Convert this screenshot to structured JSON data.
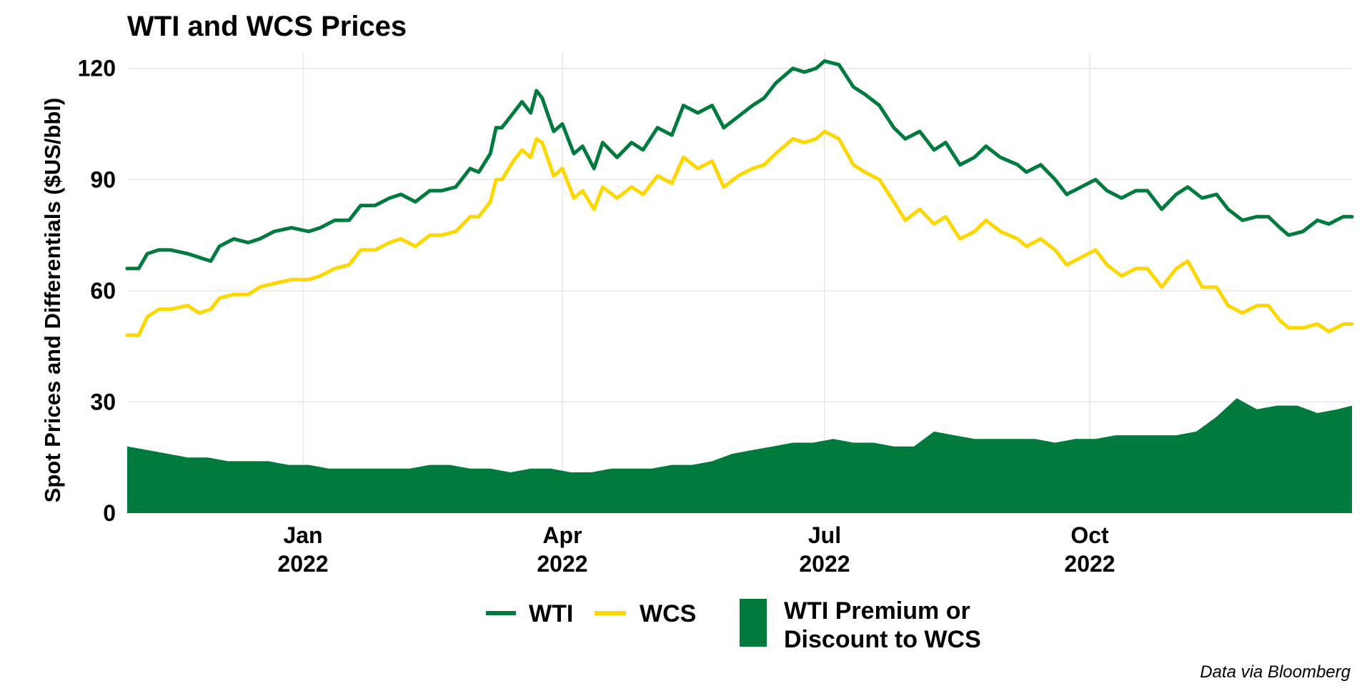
{
  "chart_data": {
    "type": "line",
    "title": "WTI and WCS Prices",
    "ylabel": "Spot Prices and Differentials ($US/bbl)",
    "xlabel": "",
    "x_range": [
      "2021-11-01",
      "2022-12-31"
    ],
    "ylim": [
      0,
      124
    ],
    "yticks": [
      0,
      30,
      60,
      90,
      120
    ],
    "ytick_labels": [
      "0",
      "30",
      "60",
      "90",
      "120"
    ],
    "xticks": [
      {
        "date": "2022-01-01",
        "label_month": "Jan",
        "label_year": "2022"
      },
      {
        "date": "2022-04-01",
        "label_month": "Apr",
        "label_year": "2022"
      },
      {
        "date": "2022-07-01",
        "label_month": "Jul",
        "label_year": "2022"
      },
      {
        "date": "2022-10-01",
        "label_month": "Oct",
        "label_year": "2022"
      }
    ],
    "grid": true,
    "legend_position": "bottom",
    "caption": "Data via Bloomberg",
    "series": [
      {
        "name": "WTI",
        "kind": "line",
        "color": "#007A3D",
        "points": [
          [
            "2021-11-01",
            66
          ],
          [
            "2021-11-05",
            66
          ],
          [
            "2021-11-08",
            70
          ],
          [
            "2021-11-12",
            71
          ],
          [
            "2021-11-16",
            71
          ],
          [
            "2021-11-22",
            70
          ],
          [
            "2021-11-26",
            69
          ],
          [
            "2021-11-30",
            68
          ],
          [
            "2021-12-03",
            72
          ],
          [
            "2021-12-08",
            74
          ],
          [
            "2021-12-13",
            73
          ],
          [
            "2021-12-17",
            74
          ],
          [
            "2021-12-22",
            76
          ],
          [
            "2021-12-28",
            77
          ],
          [
            "2022-01-03",
            76
          ],
          [
            "2022-01-07",
            77
          ],
          [
            "2022-01-12",
            79
          ],
          [
            "2022-01-17",
            79
          ],
          [
            "2022-01-21",
            83
          ],
          [
            "2022-01-26",
            83
          ],
          [
            "2022-01-31",
            85
          ],
          [
            "2022-02-04",
            86
          ],
          [
            "2022-02-09",
            84
          ],
          [
            "2022-02-14",
            87
          ],
          [
            "2022-02-18",
            87
          ],
          [
            "2022-02-23",
            88
          ],
          [
            "2022-02-28",
            93
          ],
          [
            "2022-03-03",
            92
          ],
          [
            "2022-03-07",
            97
          ],
          [
            "2022-03-09",
            104
          ],
          [
            "2022-03-11",
            104
          ],
          [
            "2022-03-15",
            108
          ],
          [
            "2022-03-18",
            111
          ],
          [
            "2022-03-21",
            108
          ],
          [
            "2022-03-23",
            114
          ],
          [
            "2022-03-25",
            112
          ],
          [
            "2022-03-29",
            103
          ],
          [
            "2022-04-01",
            105
          ],
          [
            "2022-04-05",
            97
          ],
          [
            "2022-04-08",
            99
          ],
          [
            "2022-04-12",
            93
          ],
          [
            "2022-04-15",
            100
          ],
          [
            "2022-04-20",
            96
          ],
          [
            "2022-04-25",
            100
          ],
          [
            "2022-04-29",
            98
          ],
          [
            "2022-05-04",
            104
          ],
          [
            "2022-05-09",
            102
          ],
          [
            "2022-05-13",
            110
          ],
          [
            "2022-05-18",
            108
          ],
          [
            "2022-05-23",
            110
          ],
          [
            "2022-05-27",
            104
          ],
          [
            "2022-06-01",
            107
          ],
          [
            "2022-06-06",
            110
          ],
          [
            "2022-06-10",
            112
          ],
          [
            "2022-06-14",
            116
          ],
          [
            "2022-06-20",
            120
          ],
          [
            "2022-06-24",
            119
          ],
          [
            "2022-06-28",
            120
          ],
          [
            "2022-07-01",
            122
          ],
          [
            "2022-07-06",
            121
          ],
          [
            "2022-07-11",
            115
          ],
          [
            "2022-07-15",
            113
          ],
          [
            "2022-07-20",
            110
          ],
          [
            "2022-07-25",
            104
          ],
          [
            "2022-07-29",
            101
          ],
          [
            "2022-08-03",
            103
          ],
          [
            "2022-08-08",
            98
          ],
          [
            "2022-08-12",
            100
          ],
          [
            "2022-08-17",
            94
          ],
          [
            "2022-08-22",
            96
          ],
          [
            "2022-08-26",
            99
          ],
          [
            "2022-08-31",
            96
          ],
          [
            "2022-09-06",
            94
          ],
          [
            "2022-09-09",
            92
          ],
          [
            "2022-09-14",
            94
          ],
          [
            "2022-09-19",
            90
          ],
          [
            "2022-09-23",
            86
          ],
          [
            "2022-09-28",
            88
          ],
          [
            "2022-10-03",
            90
          ],
          [
            "2022-10-07",
            87
          ],
          [
            "2022-10-12",
            85
          ],
          [
            "2022-10-17",
            87
          ],
          [
            "2022-10-21",
            87
          ],
          [
            "2022-10-26",
            82
          ],
          [
            "2022-10-31",
            86
          ],
          [
            "2022-11-04",
            88
          ],
          [
            "2022-11-09",
            85
          ],
          [
            "2022-11-14",
            86
          ],
          [
            "2022-11-18",
            82
          ],
          [
            "2022-11-23",
            79
          ],
          [
            "2022-11-28",
            80
          ],
          [
            "2022-12-02",
            80
          ],
          [
            "2022-12-06",
            77
          ],
          [
            "2022-12-09",
            75
          ],
          [
            "2022-12-14",
            76
          ],
          [
            "2022-12-19",
            79
          ],
          [
            "2022-12-23",
            78
          ],
          [
            "2022-12-28",
            80
          ],
          [
            "2022-12-31",
            80
          ]
        ]
      },
      {
        "name": "WCS",
        "kind": "line",
        "color": "#FFD700",
        "points": [
          [
            "2021-11-01",
            48
          ],
          [
            "2021-11-05",
            48
          ],
          [
            "2021-11-08",
            53
          ],
          [
            "2021-11-12",
            55
          ],
          [
            "2021-11-16",
            55
          ],
          [
            "2021-11-22",
            56
          ],
          [
            "2021-11-26",
            54
          ],
          [
            "2021-11-30",
            55
          ],
          [
            "2021-12-03",
            58
          ],
          [
            "2021-12-08",
            59
          ],
          [
            "2021-12-13",
            59
          ],
          [
            "2021-12-17",
            61
          ],
          [
            "2021-12-22",
            62
          ],
          [
            "2021-12-28",
            63
          ],
          [
            "2022-01-03",
            63
          ],
          [
            "2022-01-07",
            64
          ],
          [
            "2022-01-12",
            66
          ],
          [
            "2022-01-17",
            67
          ],
          [
            "2022-01-21",
            71
          ],
          [
            "2022-01-26",
            71
          ],
          [
            "2022-01-31",
            73
          ],
          [
            "2022-02-04",
            74
          ],
          [
            "2022-02-09",
            72
          ],
          [
            "2022-02-14",
            75
          ],
          [
            "2022-02-18",
            75
          ],
          [
            "2022-02-23",
            76
          ],
          [
            "2022-02-28",
            80
          ],
          [
            "2022-03-03",
            80
          ],
          [
            "2022-03-07",
            84
          ],
          [
            "2022-03-09",
            90
          ],
          [
            "2022-03-11",
            90
          ],
          [
            "2022-03-15",
            95
          ],
          [
            "2022-03-18",
            98
          ],
          [
            "2022-03-21",
            96
          ],
          [
            "2022-03-23",
            101
          ],
          [
            "2022-03-25",
            100
          ],
          [
            "2022-03-29",
            91
          ],
          [
            "2022-04-01",
            93
          ],
          [
            "2022-04-05",
            85
          ],
          [
            "2022-04-08",
            87
          ],
          [
            "2022-04-12",
            82
          ],
          [
            "2022-04-15",
            88
          ],
          [
            "2022-04-20",
            85
          ],
          [
            "2022-04-25",
            88
          ],
          [
            "2022-04-29",
            86
          ],
          [
            "2022-05-04",
            91
          ],
          [
            "2022-05-09",
            89
          ],
          [
            "2022-05-13",
            96
          ],
          [
            "2022-05-18",
            93
          ],
          [
            "2022-05-23",
            95
          ],
          [
            "2022-05-27",
            88
          ],
          [
            "2022-06-01",
            91
          ],
          [
            "2022-06-06",
            93
          ],
          [
            "2022-06-10",
            94
          ],
          [
            "2022-06-14",
            97
          ],
          [
            "2022-06-20",
            101
          ],
          [
            "2022-06-24",
            100
          ],
          [
            "2022-06-28",
            101
          ],
          [
            "2022-07-01",
            103
          ],
          [
            "2022-07-06",
            101
          ],
          [
            "2022-07-11",
            94
          ],
          [
            "2022-07-15",
            92
          ],
          [
            "2022-07-20",
            90
          ],
          [
            "2022-07-25",
            84
          ],
          [
            "2022-07-29",
            79
          ],
          [
            "2022-08-03",
            82
          ],
          [
            "2022-08-08",
            78
          ],
          [
            "2022-08-12",
            80
          ],
          [
            "2022-08-17",
            74
          ],
          [
            "2022-08-22",
            76
          ],
          [
            "2022-08-26",
            79
          ],
          [
            "2022-08-31",
            76
          ],
          [
            "2022-09-06",
            74
          ],
          [
            "2022-09-09",
            72
          ],
          [
            "2022-09-14",
            74
          ],
          [
            "2022-09-19",
            71
          ],
          [
            "2022-09-23",
            67
          ],
          [
            "2022-09-28",
            69
          ],
          [
            "2022-10-03",
            71
          ],
          [
            "2022-10-07",
            67
          ],
          [
            "2022-10-12",
            64
          ],
          [
            "2022-10-17",
            66
          ],
          [
            "2022-10-21",
            66
          ],
          [
            "2022-10-26",
            61
          ],
          [
            "2022-10-31",
            66
          ],
          [
            "2022-11-04",
            68
          ],
          [
            "2022-11-09",
            61
          ],
          [
            "2022-11-14",
            61
          ],
          [
            "2022-11-18",
            56
          ],
          [
            "2022-11-23",
            54
          ],
          [
            "2022-11-28",
            56
          ],
          [
            "2022-12-02",
            56
          ],
          [
            "2022-12-06",
            52
          ],
          [
            "2022-12-09",
            50
          ],
          [
            "2022-12-14",
            50
          ],
          [
            "2022-12-19",
            51
          ],
          [
            "2022-12-23",
            49
          ],
          [
            "2022-12-28",
            51
          ],
          [
            "2022-12-31",
            51
          ]
        ]
      },
      {
        "name": "WTI Premium or Discount to WCS",
        "kind": "area",
        "color": "#007A3D",
        "points": [
          [
            "2021-11-01",
            18
          ],
          [
            "2021-11-08",
            17
          ],
          [
            "2021-11-15",
            16
          ],
          [
            "2021-11-22",
            15
          ],
          [
            "2021-11-29",
            15
          ],
          [
            "2021-12-06",
            14
          ],
          [
            "2021-12-13",
            14
          ],
          [
            "2021-12-20",
            14
          ],
          [
            "2021-12-27",
            13
          ],
          [
            "2022-01-03",
            13
          ],
          [
            "2022-01-10",
            12
          ],
          [
            "2022-01-17",
            12
          ],
          [
            "2022-01-24",
            12
          ],
          [
            "2022-01-31",
            12
          ],
          [
            "2022-02-07",
            12
          ],
          [
            "2022-02-14",
            13
          ],
          [
            "2022-02-21",
            13
          ],
          [
            "2022-02-28",
            12
          ],
          [
            "2022-03-07",
            12
          ],
          [
            "2022-03-14",
            11
          ],
          [
            "2022-03-21",
            12
          ],
          [
            "2022-03-28",
            12
          ],
          [
            "2022-04-04",
            11
          ],
          [
            "2022-04-11",
            11
          ],
          [
            "2022-04-18",
            12
          ],
          [
            "2022-04-25",
            12
          ],
          [
            "2022-05-02",
            12
          ],
          [
            "2022-05-09",
            13
          ],
          [
            "2022-05-16",
            13
          ],
          [
            "2022-05-23",
            14
          ],
          [
            "2022-05-30",
            16
          ],
          [
            "2022-06-06",
            17
          ],
          [
            "2022-06-13",
            18
          ],
          [
            "2022-06-20",
            19
          ],
          [
            "2022-06-27",
            19
          ],
          [
            "2022-07-04",
            20
          ],
          [
            "2022-07-11",
            19
          ],
          [
            "2022-07-18",
            19
          ],
          [
            "2022-07-25",
            18
          ],
          [
            "2022-08-01",
            18
          ],
          [
            "2022-08-08",
            22
          ],
          [
            "2022-08-15",
            21
          ],
          [
            "2022-08-22",
            20
          ],
          [
            "2022-08-29",
            20
          ],
          [
            "2022-09-05",
            20
          ],
          [
            "2022-09-12",
            20
          ],
          [
            "2022-09-19",
            19
          ],
          [
            "2022-09-26",
            20
          ],
          [
            "2022-10-03",
            20
          ],
          [
            "2022-10-10",
            21
          ],
          [
            "2022-10-17",
            21
          ],
          [
            "2022-10-24",
            21
          ],
          [
            "2022-10-31",
            21
          ],
          [
            "2022-11-07",
            22
          ],
          [
            "2022-11-14",
            26
          ],
          [
            "2022-11-21",
            31
          ],
          [
            "2022-11-28",
            28
          ],
          [
            "2022-12-05",
            29
          ],
          [
            "2022-12-12",
            29
          ],
          [
            "2022-12-19",
            27
          ],
          [
            "2022-12-26",
            28
          ],
          [
            "2022-12-31",
            29
          ]
        ]
      }
    ],
    "legend": [
      {
        "label": "WTI",
        "color": "#007A3D",
        "kind": "line"
      },
      {
        "label": "WCS",
        "color": "#FFD700",
        "kind": "line"
      },
      {
        "label_line1": "WTI Premium or",
        "label_line2": "Discount to WCS",
        "color": "#007A3D",
        "kind": "area"
      }
    ]
  }
}
